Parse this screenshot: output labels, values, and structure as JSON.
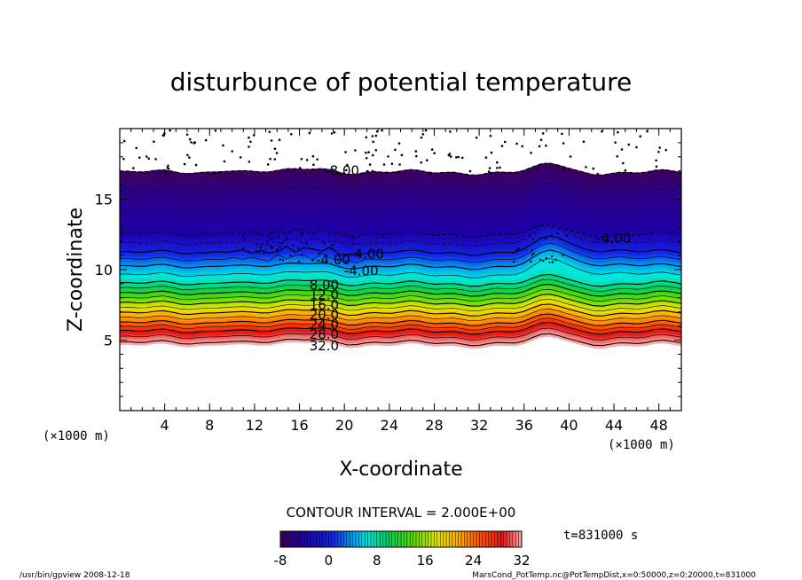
{
  "chart_data": {
    "type": "heatmap",
    "title": "disturbunce of potential temperature",
    "xlabel": "X-coordinate",
    "ylabel": "Z-coordinate",
    "x_unit": "(×1000 m)",
    "xlim": [
      0,
      50
    ],
    "ylim": [
      0,
      20
    ],
    "x_ticks": [
      4,
      8,
      12,
      16,
      20,
      24,
      28,
      32,
      36,
      40,
      44,
      48
    ],
    "y_ticks": [
      5,
      10,
      15
    ],
    "contour_interval_text": "CONTOUR INTERVAL = 2.000E+00",
    "time_text": "t=831000 s",
    "colorbar": {
      "min": -8,
      "max": 32,
      "tick_labels": [
        "-8",
        "0",
        "8",
        "16",
        "24",
        "32"
      ]
    },
    "vertical_profile": [
      {
        "z": 4.6,
        "value": 33
      },
      {
        "z": 5.6,
        "value": 28
      },
      {
        "z": 6.2,
        "value": 24
      },
      {
        "z": 6.9,
        "value": 20
      },
      {
        "z": 7.6,
        "value": 16
      },
      {
        "z": 8.3,
        "value": 12
      },
      {
        "z": 9.0,
        "value": 8
      },
      {
        "z": 10.2,
        "value": 4
      },
      {
        "z": 11.2,
        "value": 0
      },
      {
        "z": 12.5,
        "value": -4
      },
      {
        "z": 15.5,
        "value": -6
      },
      {
        "z": 16.9,
        "value": -8
      }
    ],
    "contour_labels": [
      "-8.00",
      "-4.00",
      "-4.00",
      "-4.00",
      "-4.00",
      "8.00",
      "12.0",
      "16.0",
      "20.0",
      "24.0",
      "28.0",
      "32.0"
    ]
  },
  "footer": {
    "left": "/usr/bin/gpview  2008-12-18",
    "right": "MarsCond_PotTemp.nc@PotTempDist,x=0:50000,z=0:20000,t=831000"
  }
}
